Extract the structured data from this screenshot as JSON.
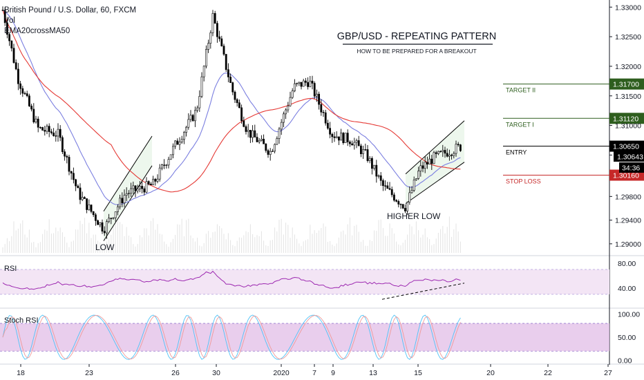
{
  "header": {
    "symbol_line": "British Pound / U.S. Dollar, 60, FXCM",
    "indicator_1": "Vol",
    "indicator_2": "EMA20crossMA50"
  },
  "annotation": {
    "title": "GBP/USD - REPEATING PATTERN",
    "subtitle": "HOW TO BE PREPARED FOR A BREAKOUT",
    "low_label": "LOW",
    "higher_low_label": "HIGHER LOW"
  },
  "levels": [
    {
      "name": "TARGET II",
      "price": 1.317,
      "price_label": "1.31700",
      "color": "#2e5e1e"
    },
    {
      "name": "TARGET I",
      "price": 1.3112,
      "price_label": "1.31120",
      "color": "#2e5e1e"
    },
    {
      "name": "ENTRY",
      "price": 1.3065,
      "price_label": "1.30650",
      "color": "#000000"
    },
    {
      "name": "STOP LOSS",
      "price": 1.3016,
      "price_label": "1.30160",
      "color": "#c62828"
    }
  ],
  "price_tags": {
    "last_price": "1.30643",
    "countdown": "34:36"
  },
  "colors": {
    "ema20": "#7b7fe0",
    "ma50": "#e53935",
    "rsi": "#9c27b0",
    "rsi_band": "#f3e5f5",
    "stoch_band": "#e1bee7",
    "stoch_k": "#4fc3f7",
    "stoch_d": "#ef9a9a",
    "channel_fill": "#e8f5e9"
  },
  "rsi_panel": {
    "label": "RSI",
    "ticks": [
      "80.00",
      "40.00"
    ]
  },
  "stoch_panel": {
    "label": "Stoch RSI",
    "ticks": [
      "100.00",
      "50.00",
      "0.00"
    ]
  },
  "chart_data": [
    {
      "type": "candlestick",
      "title": "British Pound / U.S. Dollar, 60, FXCM",
      "y_axis_ticks": [
        "1.33000",
        "1.32500",
        "1.32000",
        "1.31500",
        "1.31000",
        "1.30500",
        "1.29800",
        "1.29400",
        "1.29000"
      ],
      "ylim": [
        1.288,
        1.3312
      ],
      "x_axis_ticks": [
        "18",
        "23",
        "26",
        "30",
        "2020",
        "7",
        "9",
        "13",
        "15",
        "20",
        "22",
        "27"
      ],
      "key_points": [
        {
          "label": "start",
          "price": 1.3295
        },
        {
          "label": "LOW",
          "price": 1.2925
        },
        {
          "label": "peak",
          "price": 1.3285
        },
        {
          "label": "HIGHER LOW",
          "price": 1.2962
        },
        {
          "label": "last",
          "price": 1.30643
        }
      ],
      "series": [
        {
          "name": "Vol",
          "kind": "histogram"
        },
        {
          "name": "EMA20",
          "kind": "line"
        },
        {
          "name": "MA50",
          "kind": "line"
        }
      ]
    },
    {
      "type": "line",
      "title": "RSI",
      "y_ticks": [
        80,
        40
      ],
      "band": [
        70,
        30
      ],
      "ylim": [
        10,
        90
      ]
    },
    {
      "type": "line",
      "title": "Stoch RSI",
      "y_ticks": [
        100,
        50,
        0
      ],
      "band": [
        80,
        20
      ],
      "ylim": [
        -5,
        110
      ]
    }
  ]
}
